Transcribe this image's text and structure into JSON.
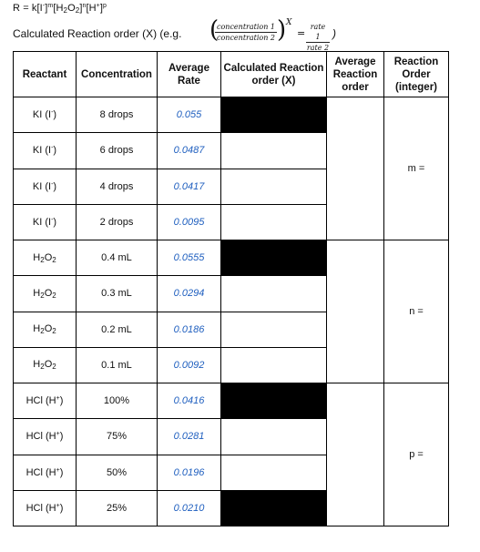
{
  "rate_law": {
    "prefix": "R = k[I",
    "iodide_sup": "-",
    "m_open": "]",
    "m": "m",
    "h2o2_open": "[H",
    "h2o2_sub2": "2",
    "h2o2_o": "O",
    "h2o2_sub2b": "2",
    "h2o2_close": "]",
    "n": "n",
    "h_open": "[H",
    "h_sup": "+",
    "h_close": "]",
    "p": "p"
  },
  "calc_line": {
    "label": "Calculated Reaction order (X) (e.g. ",
    "conc1": "concentration 1",
    "conc2": "concentration 2",
    "exp": "X",
    "eq": "=",
    "rate1": "rate 1",
    "rate2": "rate 2",
    "close": ")"
  },
  "headers": {
    "reactant": "Reactant",
    "concentration": "Concentration",
    "average_rate": "Average Rate",
    "calculated": "Calculated Reaction order (X)",
    "average_order": "Average Reaction order",
    "reaction_order": "Reaction Order (integer)"
  },
  "groups": [
    {
      "order_label": "m =",
      "rows": [
        {
          "reactant_base": "KI (I",
          "sup": "-",
          "close": ")",
          "concentration": "8 drops",
          "rate": "0.055"
        },
        {
          "reactant_base": "KI (I",
          "sup": "-",
          "close": ")",
          "concentration": "6 drops",
          "rate": "0.0487"
        },
        {
          "reactant_base": "KI (I",
          "sup": "-",
          "close": ")",
          "concentration": "4 drops",
          "rate": "0.0417"
        },
        {
          "reactant_base": "KI (I",
          "sup": "-",
          "close": ")",
          "concentration": "2 drops",
          "rate": "0.0095"
        }
      ]
    },
    {
      "order_label": "n =",
      "rows": [
        {
          "reactant_base": "H",
          "sub1": "2",
          "mid": "O",
          "sub2": "2",
          "concentration": "0.4 mL",
          "rate": "0.0555"
        },
        {
          "reactant_base": "H",
          "sub1": "2",
          "mid": "O",
          "sub2": "2",
          "concentration": "0.3 mL",
          "rate": "0.0294"
        },
        {
          "reactant_base": "H",
          "sub1": "2",
          "mid": "O",
          "sub2": "2",
          "concentration": "0.2 mL",
          "rate": "0.0186"
        },
        {
          "reactant_base": "H",
          "sub1": "2",
          "mid": "O",
          "sub2": "2",
          "concentration": "0.1 mL",
          "rate": "0.0092"
        }
      ]
    },
    {
      "order_label": "p =",
      "rows": [
        {
          "reactant_base": "HCl (H",
          "sup": "+",
          "close": ")",
          "concentration": "100%",
          "rate": "0.0416"
        },
        {
          "reactant_base": "HCl (H",
          "sup": "+",
          "close": ")",
          "concentration": "75%",
          "rate": "0.0281"
        },
        {
          "reactant_base": "HCl (H",
          "sup": "+",
          "close": ")",
          "concentration": "50%",
          "rate": "0.0196"
        },
        {
          "reactant_base": "HCl (H",
          "sup": "+",
          "close": ")",
          "concentration": "25%",
          "rate": "0.0210"
        }
      ]
    }
  ]
}
